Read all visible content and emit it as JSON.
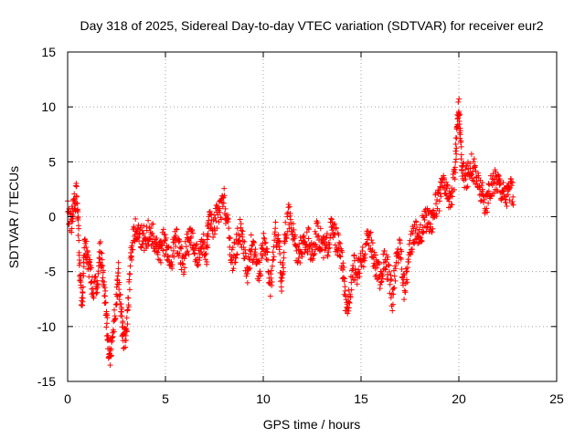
{
  "chart_data": {
    "type": "scatter",
    "title": "Day 318 of 2025, Sidereal Day-to-day VTEC variation (SDTVAR) for receiver eur2",
    "xlabel": "GPS time / hours",
    "ylabel": "SDTVAR / TECUs",
    "xlim": [
      0,
      25
    ],
    "ylim": [
      -15,
      15
    ],
    "xticks": [
      "0",
      "5",
      "10",
      "15",
      "20",
      "25"
    ],
    "yticks": [
      "-15",
      "-10",
      "-5",
      "0",
      "5",
      "10",
      "15"
    ],
    "grid": true,
    "marker": "+",
    "color": "#ff0000",
    "trend": [
      [
        0.0,
        0.5
      ],
      [
        0.2,
        -0.5
      ],
      [
        0.3,
        1.0
      ],
      [
        0.45,
        2.0
      ],
      [
        0.55,
        -1.0
      ],
      [
        0.65,
        -6.0
      ],
      [
        0.75,
        -8.5
      ],
      [
        0.85,
        -2.5
      ],
      [
        1.0,
        -3.5
      ],
      [
        1.15,
        -5.0
      ],
      [
        1.3,
        -6.5
      ],
      [
        1.5,
        -6.5
      ],
      [
        1.65,
        -3.0
      ],
      [
        1.8,
        -5.0
      ],
      [
        1.95,
        -8.5
      ],
      [
        2.05,
        -11.0
      ],
      [
        2.15,
        -13.0
      ],
      [
        2.3,
        -10.5
      ],
      [
        2.5,
        -7.5
      ],
      [
        2.6,
        -5.0
      ],
      [
        2.75,
        -9.0
      ],
      [
        2.85,
        -11.5
      ],
      [
        3.0,
        -10.5
      ],
      [
        3.15,
        -6.5
      ],
      [
        3.3,
        -2.0
      ],
      [
        3.5,
        -1.0
      ],
      [
        3.7,
        -1.5
      ],
      [
        3.9,
        -2.0
      ],
      [
        4.1,
        -1.5
      ],
      [
        4.3,
        -1.5
      ],
      [
        4.5,
        -2.5
      ],
      [
        4.7,
        -3.5
      ],
      [
        4.9,
        -2.0
      ],
      [
        5.1,
        -3.5
      ],
      [
        5.3,
        -4.0
      ],
      [
        5.5,
        -2.0
      ],
      [
        5.7,
        -2.5
      ],
      [
        5.9,
        -4.5
      ],
      [
        6.1,
        -2.5
      ],
      [
        6.3,
        -2.0
      ],
      [
        6.5,
        -3.0
      ],
      [
        6.7,
        -4.0
      ],
      [
        6.9,
        -2.5
      ],
      [
        7.1,
        -3.5
      ],
      [
        7.2,
        -0.5
      ],
      [
        7.4,
        -1.0
      ],
      [
        7.6,
        0.0
      ],
      [
        7.8,
        0.5
      ],
      [
        8.0,
        1.5
      ],
      [
        8.2,
        -1.0
      ],
      [
        8.4,
        -4.0
      ],
      [
        8.6,
        -3.0
      ],
      [
        8.8,
        -1.0
      ],
      [
        9.0,
        -3.0
      ],
      [
        9.2,
        -5.0
      ],
      [
        9.4,
        -2.5
      ],
      [
        9.6,
        -4.0
      ],
      [
        9.8,
        -5.5
      ],
      [
        10.0,
        -2.0
      ],
      [
        10.2,
        -4.0
      ],
      [
        10.4,
        -6.5
      ],
      [
        10.6,
        -1.5
      ],
      [
        10.8,
        -2.5
      ],
      [
        10.95,
        -6.5
      ],
      [
        11.1,
        -2.0
      ],
      [
        11.3,
        0.0
      ],
      [
        11.5,
        -1.0
      ],
      [
        11.7,
        -3.0
      ],
      [
        11.9,
        -3.0
      ],
      [
        12.1,
        -2.5
      ],
      [
        12.3,
        -2.0
      ],
      [
        12.5,
        -3.5
      ],
      [
        12.7,
        -1.5
      ],
      [
        12.9,
        -2.0
      ],
      [
        13.1,
        -3.0
      ],
      [
        13.3,
        -2.5
      ],
      [
        13.5,
        -1.0
      ],
      [
        13.7,
        -2.0
      ],
      [
        13.9,
        -3.0
      ],
      [
        14.1,
        -5.0
      ],
      [
        14.25,
        -9.0
      ],
      [
        14.4,
        -7.0
      ],
      [
        14.6,
        -4.5
      ],
      [
        14.8,
        -5.0
      ],
      [
        15.0,
        -4.5
      ],
      [
        15.2,
        -3.0
      ],
      [
        15.4,
        -1.5
      ],
      [
        15.6,
        -3.5
      ],
      [
        15.8,
        -5.0
      ],
      [
        16.0,
        -5.5
      ],
      [
        16.2,
        -4.0
      ],
      [
        16.4,
        -5.0
      ],
      [
        16.6,
        -7.5
      ],
      [
        16.8,
        -4.0
      ],
      [
        17.0,
        -2.5
      ],
      [
        17.2,
        -6.5
      ],
      [
        17.4,
        -4.5
      ],
      [
        17.6,
        -2.0
      ],
      [
        17.8,
        -1.0
      ],
      [
        18.0,
        -2.0
      ],
      [
        18.2,
        -0.5
      ],
      [
        18.4,
        0.0
      ],
      [
        18.6,
        -0.5
      ],
      [
        18.8,
        1.0
      ],
      [
        19.0,
        1.5
      ],
      [
        19.2,
        3.0
      ],
      [
        19.4,
        2.0
      ],
      [
        19.6,
        1.5
      ],
      [
        19.8,
        4.0
      ],
      [
        19.9,
        8.0
      ],
      [
        20.0,
        10.5
      ],
      [
        20.1,
        6.0
      ],
      [
        20.2,
        4.0
      ],
      [
        20.4,
        3.5
      ],
      [
        20.6,
        5.0
      ],
      [
        20.8,
        4.0
      ],
      [
        21.0,
        3.0
      ],
      [
        21.2,
        2.0
      ],
      [
        21.4,
        1.0
      ],
      [
        21.6,
        2.5
      ],
      [
        21.8,
        3.0
      ],
      [
        22.0,
        3.5
      ],
      [
        22.2,
        2.5
      ],
      [
        22.4,
        2.0
      ],
      [
        22.6,
        2.5
      ],
      [
        22.8,
        2.0
      ]
    ]
  }
}
